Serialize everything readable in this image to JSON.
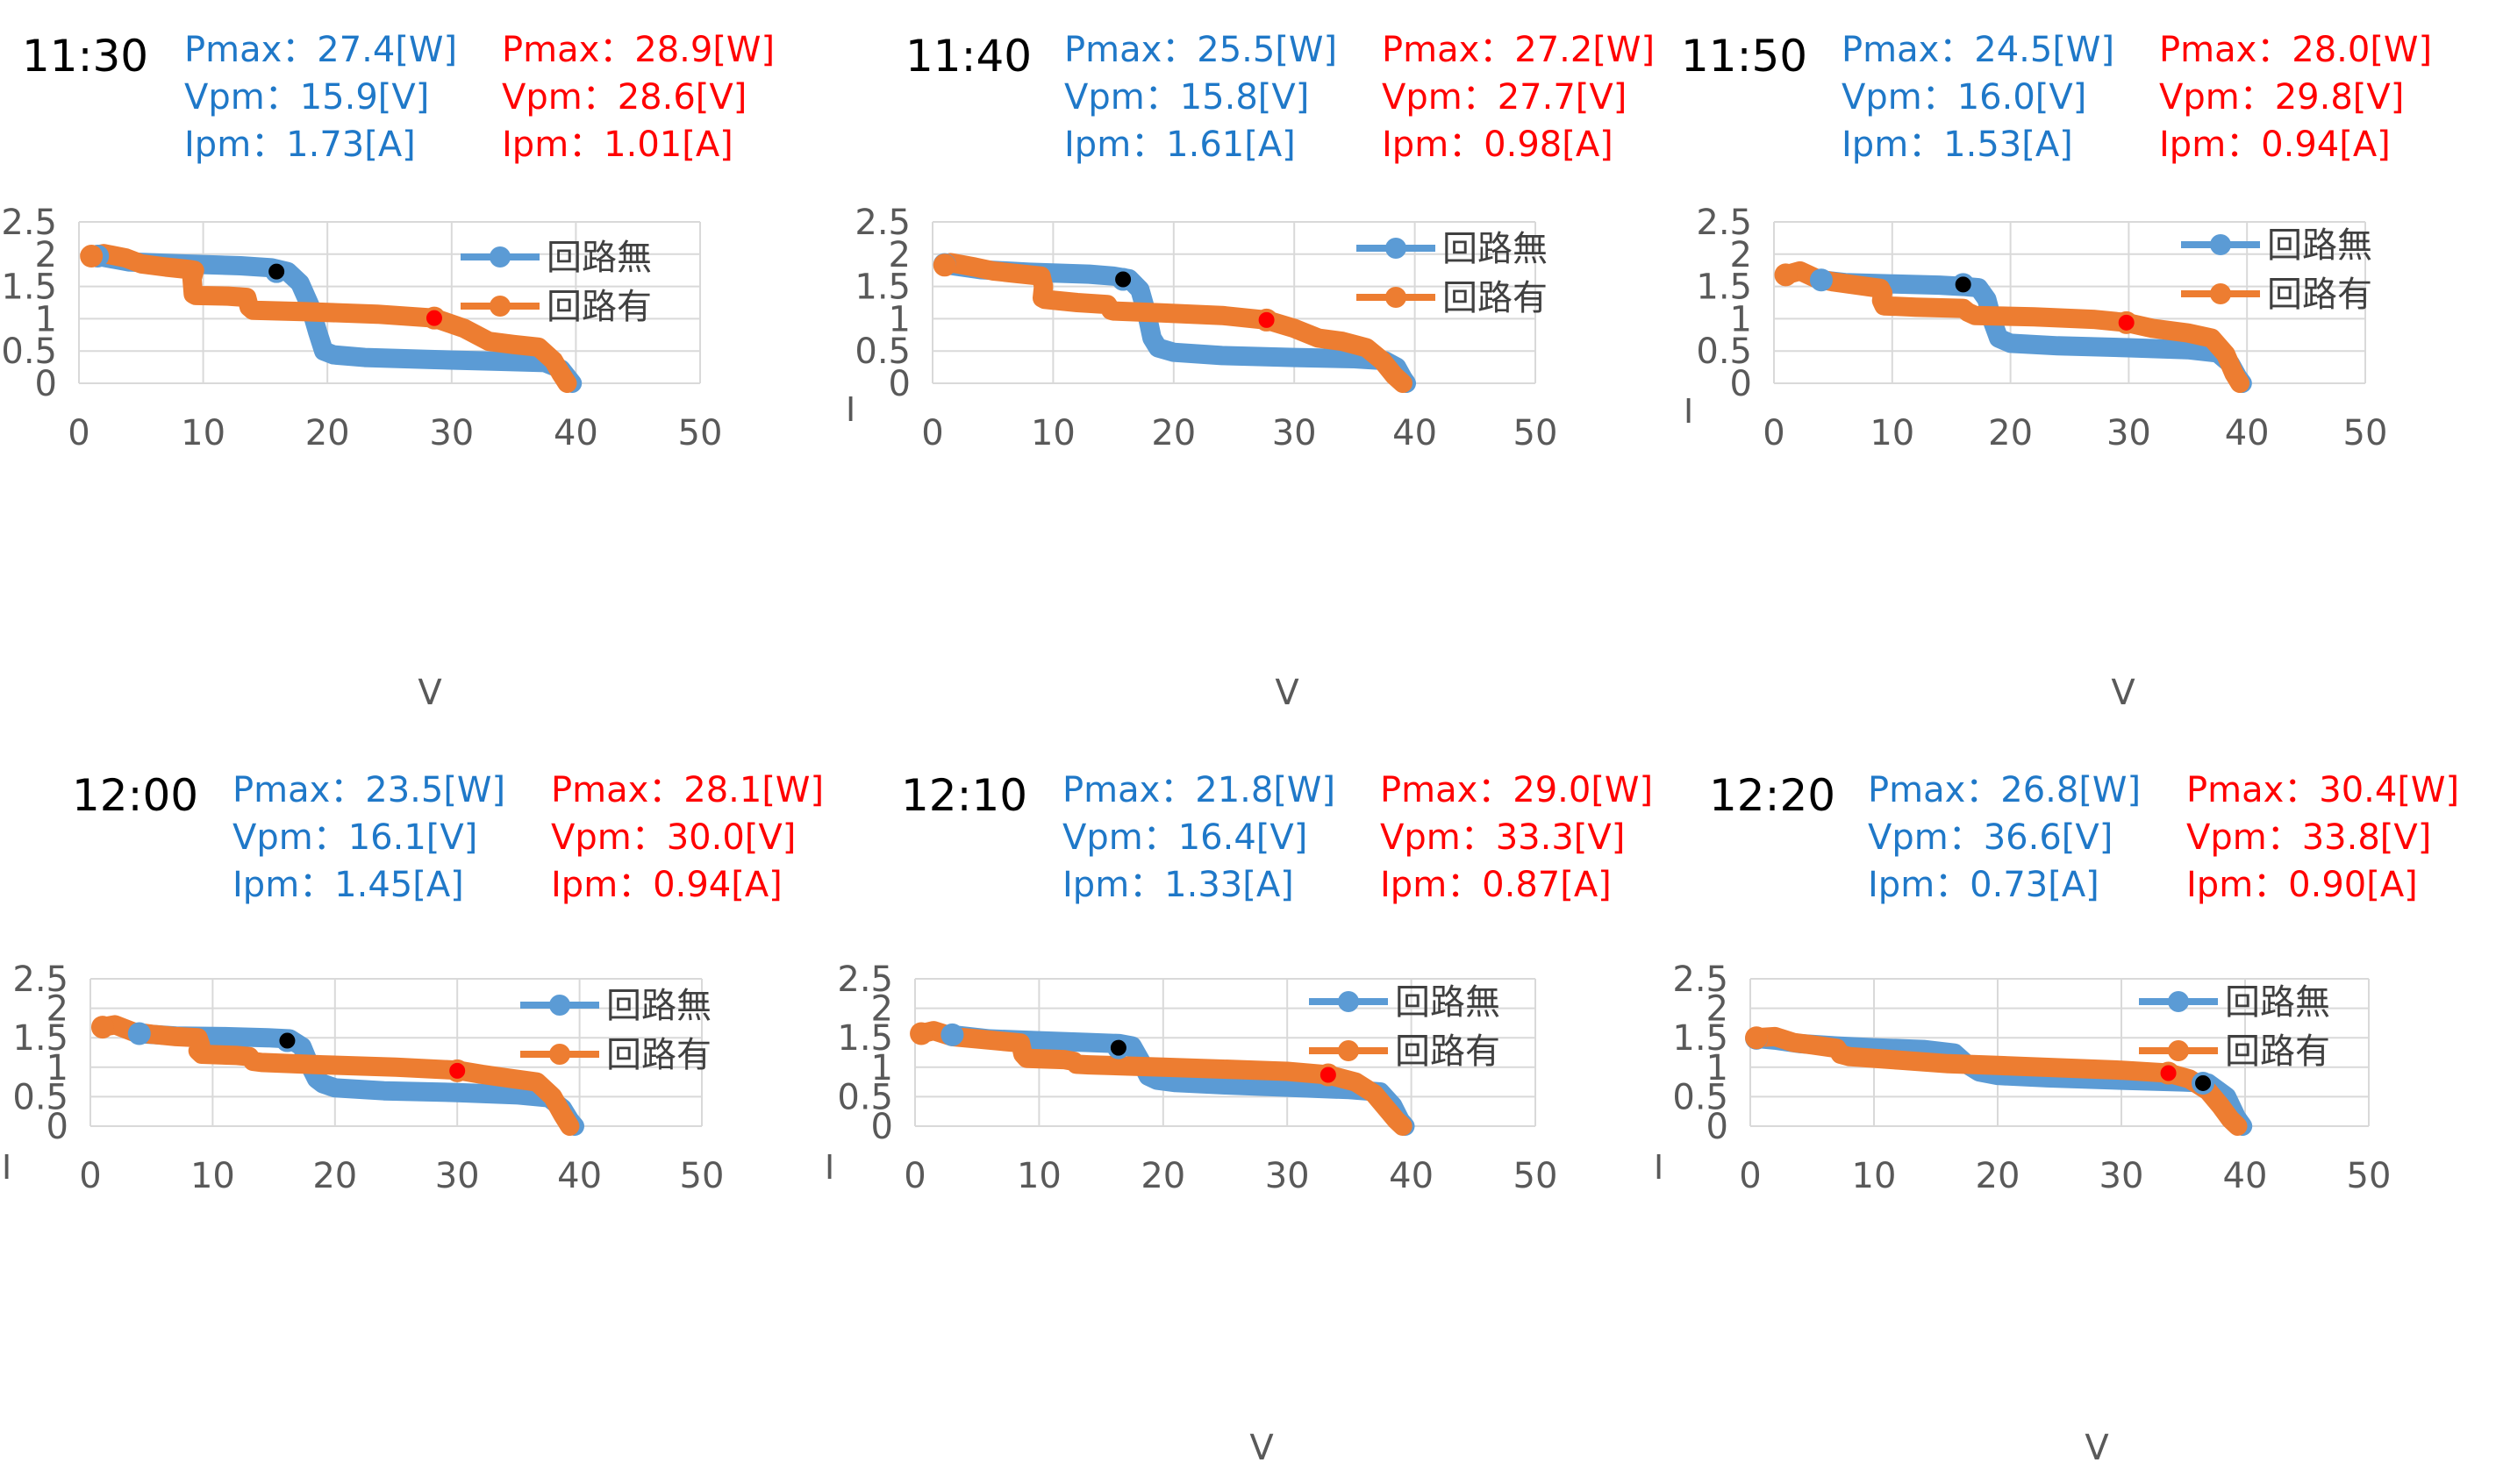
{
  "colors": {
    "no_circuit": "#5b9bd5",
    "with_circuit": "#ed7d31",
    "mpp_no_circuit": "#000000",
    "mpp_with_circuit": "#ff0000",
    "stat_blue": "#1f78c8",
    "stat_red": "#ff0000",
    "grid": "#d9d9d9",
    "tick_text": "#595959"
  },
  "chart_data": [
    {
      "type": "line",
      "time": "11:30",
      "no_circuit": {
        "Pmax": "Pmax：27.4[W]",
        "Vpm": "Vpm：15.9[V]",
        "Ipm": "Ipm：1.73[A]"
      },
      "with_circuit": {
        "Pmax": "Pmax：28.9[W]",
        "Vpm": "Vpm：28.6[V]",
        "Ipm": "Ipm：1.01[A]"
      },
      "xlabel": "V",
      "ylabel": "",
      "xlim": [
        0,
        50
      ],
      "ylim": [
        0,
        2.5
      ],
      "xticks": [
        "0",
        "10",
        "20",
        "30",
        "40",
        "50"
      ],
      "yticks": [
        "0",
        "0.5",
        "1",
        "1.5",
        "2",
        "2.5"
      ],
      "legend": [
        "回路無",
        "回路有"
      ],
      "grid": true,
      "legend_position": "top-right",
      "series": [
        {
          "name": "回路無",
          "x": [
            1.5,
            4,
            8,
            13,
            15.5,
            16.8,
            17.8,
            18.6,
            19.2,
            19.7,
            20.5,
            23,
            28,
            34,
            37.5,
            38.8,
            39.5,
            39.7
          ],
          "y": [
            1.97,
            1.88,
            1.85,
            1.82,
            1.79,
            1.73,
            1.55,
            1.2,
            0.8,
            0.5,
            0.44,
            0.4,
            0.37,
            0.34,
            0.32,
            0.22,
            0.05,
            0.0
          ]
        },
        {
          "name": "回路有",
          "x": [
            1,
            2,
            3.8,
            5,
            7,
            9,
            9.3,
            9.1,
            9.2,
            9.4,
            12,
            13.5,
            13.7,
            14,
            18,
            24,
            28.6,
            31,
            33,
            35,
            37,
            38.2,
            38.8,
            39.3
          ],
          "y": [
            1.97,
            2.01,
            1.94,
            1.85,
            1.8,
            1.76,
            1.75,
            1.62,
            1.38,
            1.36,
            1.35,
            1.33,
            1.18,
            1.13,
            1.11,
            1.07,
            1.01,
            0.85,
            0.65,
            0.6,
            0.56,
            0.35,
            0.15,
            0.0
          ]
        }
      ],
      "mpp": [
        {
          "series": "回路無",
          "x": 15.9,
          "y": 1.73
        },
        {
          "series": "回路有",
          "x": 28.6,
          "y": 1.01
        }
      ]
    },
    {
      "type": "line",
      "time": "11:40",
      "no_circuit": {
        "Pmax": "Pmax：25.5[W]",
        "Vpm": "Vpm：15.8[V]",
        "Ipm": "Ipm：1.61[A]"
      },
      "with_circuit": {
        "Pmax": "Pmax：27.2[W]",
        "Vpm": "Vpm：27.7[V]",
        "Ipm": "Ipm：0.98[A]"
      },
      "xlabel": "V",
      "ylabel": "I",
      "xlim": [
        0,
        50
      ],
      "ylim": [
        0,
        2.5
      ],
      "xticks": [
        "0",
        "10",
        "20",
        "30",
        "40",
        "50"
      ],
      "yticks": [
        "0",
        "0.5",
        "1",
        "1.5",
        "2",
        "2.5"
      ],
      "legend": [
        "回路無",
        "回路有"
      ],
      "grid": true,
      "legend_position": "top-right",
      "series": [
        {
          "name": "回路無",
          "x": [
            1,
            4,
            8,
            13,
            15,
            16.3,
            17.2,
            17.8,
            18.2,
            18.7,
            20,
            24,
            30,
            35,
            37.5,
            38.5,
            39,
            39.3
          ],
          "y": [
            1.84,
            1.76,
            1.72,
            1.69,
            1.66,
            1.62,
            1.45,
            1.05,
            0.7,
            0.55,
            0.48,
            0.43,
            0.4,
            0.38,
            0.35,
            0.25,
            0.08,
            0.0
          ]
        },
        {
          "name": "回路有",
          "x": [
            1,
            1.5,
            3.5,
            5,
            7,
            9,
            9.2,
            9.1,
            9.3,
            12,
            14.5,
            14.8,
            15,
            19,
            24,
            27.7,
            30,
            32,
            34,
            36,
            37.3,
            38.3,
            39
          ],
          "y": [
            1.83,
            1.87,
            1.8,
            1.74,
            1.7,
            1.66,
            1.5,
            1.32,
            1.3,
            1.25,
            1.22,
            1.13,
            1.12,
            1.09,
            1.05,
            0.98,
            0.85,
            0.7,
            0.65,
            0.55,
            0.35,
            0.12,
            0.0
          ]
        }
      ],
      "mpp": [
        {
          "series": "回路無",
          "x": 15.8,
          "y": 1.61
        },
        {
          "series": "回路有",
          "x": 27.7,
          "y": 0.98
        }
      ]
    },
    {
      "type": "line",
      "time": "11:50",
      "no_circuit": {
        "Pmax": "Pmax：24.5[W]",
        "Vpm": "Vpm：16.0[V]",
        "Ipm": "Ipm：1.53[A]"
      },
      "with_circuit": {
        "Pmax": "Pmax：28.0[W]",
        "Vpm": "Vpm：29.8[V]",
        "Ipm": "Ipm：0.94[A]"
      },
      "xlabel": "V",
      "ylabel": "I",
      "xlim": [
        0,
        50
      ],
      "ylim": [
        0,
        2.5
      ],
      "xticks": [
        "0",
        "10",
        "20",
        "30",
        "40",
        "50"
      ],
      "yticks": [
        "0",
        "0.5",
        "1",
        "1.5",
        "2",
        "2.5"
      ],
      "legend": [
        "回路無",
        "回路有"
      ],
      "grid": true,
      "legend_position": "top-right",
      "series": [
        {
          "name": "回路無",
          "x": [
            4,
            6,
            10,
            14,
            16,
            17.3,
            18,
            18.5,
            19,
            20,
            24,
            30,
            35,
            37.5,
            38.6,
            39.2,
            39.6
          ],
          "y": [
            1.6,
            1.56,
            1.54,
            1.52,
            1.5,
            1.48,
            1.3,
            0.95,
            0.7,
            0.62,
            0.58,
            0.55,
            0.52,
            0.47,
            0.3,
            0.1,
            0.0
          ]
        },
        {
          "name": "回路有",
          "x": [
            1,
            2.2,
            3.5,
            5,
            7,
            9,
            9.2,
            9.1,
            9.3,
            12,
            16,
            16.4,
            17,
            22,
            27,
            29.8,
            32,
            35,
            37,
            38.2,
            38.9,
            39.4
          ],
          "y": [
            1.68,
            1.74,
            1.63,
            1.57,
            1.52,
            1.47,
            1.4,
            1.28,
            1.2,
            1.18,
            1.16,
            1.1,
            1.05,
            1.03,
            0.99,
            0.94,
            0.85,
            0.78,
            0.7,
            0.45,
            0.15,
            0.0
          ]
        }
      ],
      "mpp": [
        {
          "series": "回路無",
          "x": 16.0,
          "y": 1.53
        },
        {
          "series": "回路有",
          "x": 29.8,
          "y": 0.94
        }
      ]
    },
    {
      "type": "line",
      "time": "12:00",
      "no_circuit": {
        "Pmax": "Pmax：23.5[W]",
        "Vpm": "Vpm：16.1[V]",
        "Ipm": "Ipm：1.45[A]"
      },
      "with_circuit": {
        "Pmax": "Pmax：28.1[W]",
        "Vpm": "Vpm：30.0[V]",
        "Ipm": "Ipm：0.94[A]"
      },
      "xlabel": "",
      "ylabel": "I",
      "xlim": [
        0,
        50
      ],
      "ylim": [
        0,
        2.5
      ],
      "xticks": [
        "0",
        "10",
        "20",
        "30",
        "40",
        "50"
      ],
      "yticks": [
        "0",
        "0.5",
        "1",
        "1.5",
        "2",
        "2.5"
      ],
      "legend": [
        "回路無",
        "回路有"
      ],
      "grid": true,
      "legend_position": "top-right",
      "series": [
        {
          "name": "回路無",
          "x": [
            4,
            7,
            11,
            14.5,
            16.3,
            17.3,
            17.9,
            18.5,
            19,
            20,
            24,
            30,
            35,
            37.5,
            38.6,
            39.2,
            39.6
          ],
          "y": [
            1.57,
            1.53,
            1.52,
            1.5,
            1.48,
            1.35,
            1.05,
            0.8,
            0.72,
            0.65,
            0.6,
            0.57,
            0.53,
            0.48,
            0.3,
            0.1,
            0.0
          ]
        },
        {
          "name": "回路有",
          "x": [
            1,
            2,
            3.5,
            5,
            7,
            8.8,
            9,
            8.8,
            9.1,
            12,
            13,
            13.3,
            14,
            19,
            25,
            30,
            32,
            34,
            36.5,
            37.8,
            38.6,
            39.2
          ],
          "y": [
            1.68,
            1.72,
            1.6,
            1.56,
            1.52,
            1.5,
            1.38,
            1.28,
            1.22,
            1.2,
            1.18,
            1.1,
            1.08,
            1.04,
            1.0,
            0.95,
            0.88,
            0.82,
            0.75,
            0.5,
            0.2,
            0.0
          ]
        }
      ],
      "mpp": [
        {
          "series": "回路無",
          "x": 16.1,
          "y": 1.45
        },
        {
          "series": "回路有",
          "x": 30.0,
          "y": 0.94
        }
      ]
    },
    {
      "type": "line",
      "time": "12:10",
      "no_circuit": {
        "Pmax": "Pmax：21.8[W]",
        "Vpm": "Vpm：16.4[V]",
        "Ipm": "Ipm：1.33[A]"
      },
      "with_circuit": {
        "Pmax": "Pmax：29.0[W]",
        "Vpm": "Vpm：33.3[V]",
        "Ipm": "Ipm：0.87[A]"
      },
      "xlabel": "V",
      "ylabel": "I",
      "xlim": [
        0,
        50
      ],
      "ylim": [
        0,
        2.5
      ],
      "xticks": [
        "0",
        "10",
        "20",
        "30",
        "40",
        "50"
      ],
      "yticks": [
        "0",
        "0.5",
        "1",
        "1.5",
        "2",
        "2.5"
      ],
      "legend": [
        "回路無",
        "回路有"
      ],
      "grid": true,
      "legend_position": "top-right",
      "series": [
        {
          "name": "回路無",
          "x": [
            3,
            6,
            10,
            14,
            16.5,
            17.5,
            18.2,
            18.8,
            19.5,
            21,
            25,
            30,
            35,
            37.5,
            38.5,
            39.1,
            39.5
          ],
          "y": [
            1.55,
            1.48,
            1.45,
            1.42,
            1.4,
            1.36,
            1.1,
            0.85,
            0.78,
            0.74,
            0.7,
            0.66,
            0.62,
            0.58,
            0.35,
            0.1,
            0.0
          ]
        },
        {
          "name": "回路有",
          "x": [
            0.5,
            1.5,
            3,
            5,
            7,
            8.5,
            8.7,
            9,
            12,
            12.8,
            13,
            14,
            20,
            26,
            30,
            33.3,
            35.5,
            37,
            38,
            38.8,
            39.3
          ],
          "y": [
            1.57,
            1.62,
            1.52,
            1.48,
            1.44,
            1.41,
            1.22,
            1.15,
            1.13,
            1.1,
            1.05,
            1.04,
            1.0,
            0.96,
            0.93,
            0.87,
            0.75,
            0.55,
            0.3,
            0.1,
            0.0
          ]
        }
      ],
      "mpp": [
        {
          "series": "回路無",
          "x": 16.4,
          "y": 1.33
        },
        {
          "series": "回路有",
          "x": 33.3,
          "y": 0.87
        }
      ]
    },
    {
      "type": "line",
      "time": "12:20",
      "no_circuit": {
        "Pmax": "Pmax：26.8[W]",
        "Vpm": "Vpm：36.6[V]",
        "Ipm": "Ipm：0.73[A]"
      },
      "with_circuit": {
        "Pmax": "Pmax：30.4[W]",
        "Vpm": "Vpm：33.8[V]",
        "Ipm": "Ipm：0.90[A]"
      },
      "xlabel": "V",
      "ylabel": "I",
      "xlim": [
        0,
        50
      ],
      "ylim": [
        0,
        2.5
      ],
      "xticks": [
        "0",
        "10",
        "20",
        "30",
        "40",
        "50"
      ],
      "yticks": [
        "0",
        "0.5",
        "1",
        "1.5",
        "2",
        "2.5"
      ],
      "legend": [
        "回路無",
        "回路有"
      ],
      "grid": true,
      "legend_position": "top-right",
      "series": [
        {
          "name": "回路無",
          "x": [
            0.5,
            2,
            4,
            7,
            10,
            14,
            16.5,
            17.5,
            18.5,
            20,
            24,
            30,
            35,
            37,
            38.5,
            39.3,
            39.8
          ],
          "y": [
            1.49,
            1.46,
            1.4,
            1.36,
            1.33,
            1.3,
            1.24,
            1.05,
            0.92,
            0.86,
            0.82,
            0.78,
            0.75,
            0.73,
            0.5,
            0.15,
            0.0
          ]
        },
        {
          "name": "回路有",
          "x": [
            0.5,
            2,
            3.5,
            5,
            7,
            7.3,
            8,
            12,
            16,
            20,
            25,
            30,
            33.8,
            35.5,
            37,
            38,
            38.8,
            39.4
          ],
          "y": [
            1.5,
            1.52,
            1.42,
            1.38,
            1.32,
            1.22,
            1.18,
            1.12,
            1.06,
            1.03,
            0.99,
            0.95,
            0.9,
            0.8,
            0.6,
            0.35,
            0.12,
            0.0
          ]
        }
      ],
      "mpp": [
        {
          "series": "回路無",
          "x": 36.6,
          "y": 0.73
        },
        {
          "series": "回路有",
          "x": 33.8,
          "y": 0.9
        }
      ]
    }
  ]
}
